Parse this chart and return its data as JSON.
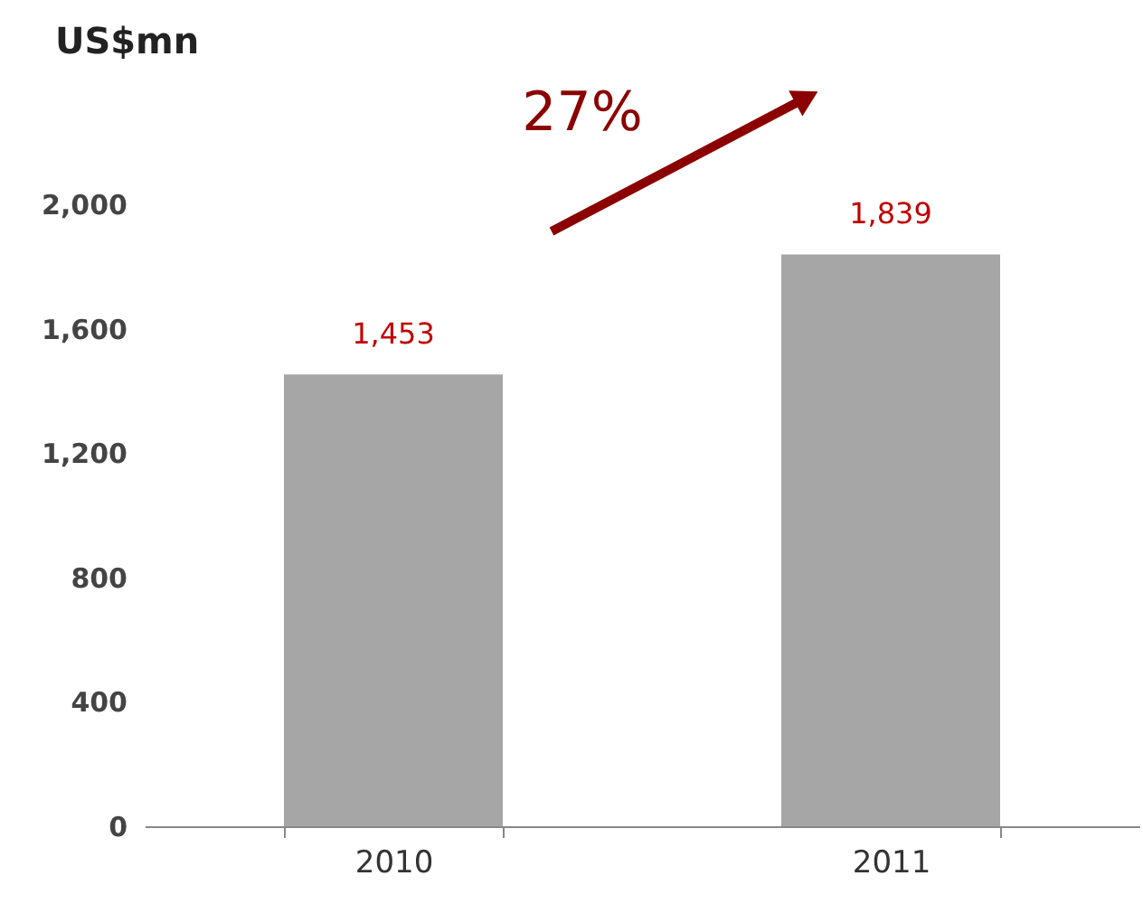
{
  "chart_data": {
    "type": "bar",
    "ylabel": "US$mn",
    "categories": [
      "2010",
      "2011"
    ],
    "values": [
      1453,
      1839
    ],
    "color": "#a6a6a6",
    "ylim": [
      0,
      2000
    ],
    "yticks": [
      0,
      {
        "value": 400,
        "label": "400"
      },
      {
        "value": 800,
        "label": "800"
      },
      {
        "value": 1200,
        "label": "1,200"
      },
      {
        "value": 1600,
        "label": "1,600"
      },
      {
        "value": 2000,
        "label": "2,000"
      }
    ],
    "value_labels": [
      "1,453",
      "1,839"
    ],
    "grid": false,
    "annotations": [
      "27%"
    ]
  }
}
